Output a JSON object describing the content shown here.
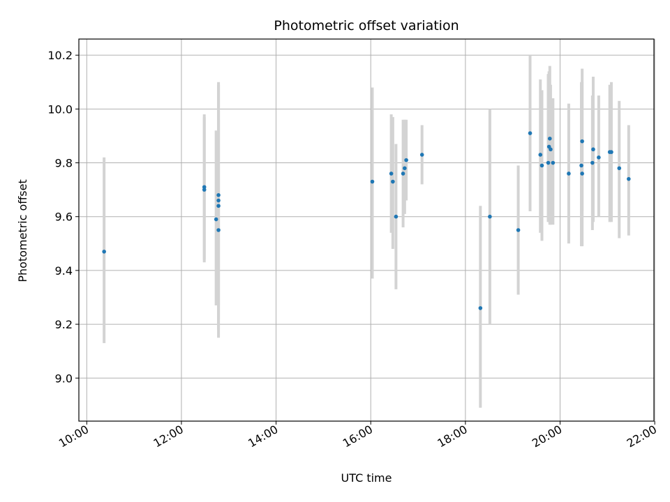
{
  "chart_data": {
    "type": "scatter",
    "title": "Photometric offset variation",
    "xlabel": "UTC time",
    "ylabel": "Photometric offset",
    "x_tick_labels": [
      "10:00",
      "12:00",
      "14:00",
      "16:00",
      "18:00",
      "20:00",
      "22:00"
    ],
    "y_tick_labels": [
      "9.0",
      "9.2",
      "9.4",
      "9.6",
      "9.8",
      "10.0",
      "10.2"
    ],
    "xlim": [
      "09:50",
      "21:59"
    ],
    "ylim": [
      8.84,
      10.26
    ],
    "grid": true,
    "colors": {
      "point": "#1f77b4",
      "errorbar": "#d3d3d3",
      "grid": "#b0b0b0"
    },
    "points": [
      {
        "x": "10:22",
        "y": 9.47,
        "ylow": 9.13,
        "yhigh": 9.82
      },
      {
        "x": "12:29",
        "y": 9.71,
        "ylow": 9.43,
        "yhigh": 9.98
      },
      {
        "x": "12:29",
        "y": 9.7,
        "ylow": 9.44,
        "yhigh": 9.97
      },
      {
        "x": "12:44",
        "y": 9.59,
        "ylow": 9.27,
        "yhigh": 9.92
      },
      {
        "x": "12:47",
        "y": 9.68,
        "ylow": 9.27,
        "yhigh": 10.1
      },
      {
        "x": "12:47",
        "y": 9.66,
        "ylow": 9.22,
        "yhigh": 10.09
      },
      {
        "x": "12:47",
        "y": 9.64,
        "ylow": 9.18,
        "yhigh": 10.09
      },
      {
        "x": "12:47",
        "y": 9.55,
        "ylow": 9.15,
        "yhigh": 9.96
      },
      {
        "x": "16:02",
        "y": 9.73,
        "ylow": 9.37,
        "yhigh": 10.08
      },
      {
        "x": "16:26",
        "y": 9.76,
        "ylow": 9.54,
        "yhigh": 9.98
      },
      {
        "x": "16:28",
        "y": 9.73,
        "ylow": 9.48,
        "yhigh": 9.97
      },
      {
        "x": "16:32",
        "y": 9.6,
        "ylow": 9.33,
        "yhigh": 9.87
      },
      {
        "x": "16:41",
        "y": 9.76,
        "ylow": 9.56,
        "yhigh": 9.96
      },
      {
        "x": "16:43",
        "y": 9.78,
        "ylow": 9.61,
        "yhigh": 9.96
      },
      {
        "x": "16:45",
        "y": 9.81,
        "ylow": 9.66,
        "yhigh": 9.96
      },
      {
        "x": "17:05",
        "y": 9.83,
        "ylow": 9.72,
        "yhigh": 9.94
      },
      {
        "x": "18:19",
        "y": 9.26,
        "ylow": 8.89,
        "yhigh": 9.64
      },
      {
        "x": "18:31",
        "y": 9.6,
        "ylow": 9.2,
        "yhigh": 10.0
      },
      {
        "x": "19:07",
        "y": 9.55,
        "ylow": 9.31,
        "yhigh": 9.79
      },
      {
        "x": "19:22",
        "y": 9.91,
        "ylow": 9.62,
        "yhigh": 10.2
      },
      {
        "x": "19:35",
        "y": 9.83,
        "ylow": 9.54,
        "yhigh": 10.11
      },
      {
        "x": "19:37",
        "y": 9.79,
        "ylow": 9.51,
        "yhigh": 10.07
      },
      {
        "x": "19:45",
        "y": 9.8,
        "ylow": 9.58,
        "yhigh": 10.13
      },
      {
        "x": "19:46",
        "y": 9.86,
        "ylow": 9.58,
        "yhigh": 10.14
      },
      {
        "x": "19:47",
        "y": 9.89,
        "ylow": 9.57,
        "yhigh": 10.16
      },
      {
        "x": "19:48",
        "y": 9.85,
        "ylow": 9.57,
        "yhigh": 10.09
      },
      {
        "x": "19:51",
        "y": 9.8,
        "ylow": 9.57,
        "yhigh": 10.04
      },
      {
        "x": "20:11",
        "y": 9.76,
        "ylow": 9.5,
        "yhigh": 10.02
      },
      {
        "x": "20:27",
        "y": 9.79,
        "ylow": 9.49,
        "yhigh": 10.1
      },
      {
        "x": "20:28",
        "y": 9.76,
        "ylow": 9.49,
        "yhigh": 10.1
      },
      {
        "x": "20:28",
        "y": 9.88,
        "ylow": 9.62,
        "yhigh": 10.15
      },
      {
        "x": "20:41",
        "y": 9.8,
        "ylow": 9.55,
        "yhigh": 10.05
      },
      {
        "x": "20:42",
        "y": 9.85,
        "ylow": 9.58,
        "yhigh": 10.12
      },
      {
        "x": "20:49",
        "y": 9.82,
        "ylow": 9.6,
        "yhigh": 10.05
      },
      {
        "x": "21:03",
        "y": 9.84,
        "ylow": 9.58,
        "yhigh": 10.09
      },
      {
        "x": "21:05",
        "y": 9.84,
        "ylow": 9.58,
        "yhigh": 10.1
      },
      {
        "x": "21:15",
        "y": 9.78,
        "ylow": 9.52,
        "yhigh": 10.03
      },
      {
        "x": "21:27",
        "y": 9.74,
        "ylow": 9.53,
        "yhigh": 9.94
      }
    ]
  }
}
